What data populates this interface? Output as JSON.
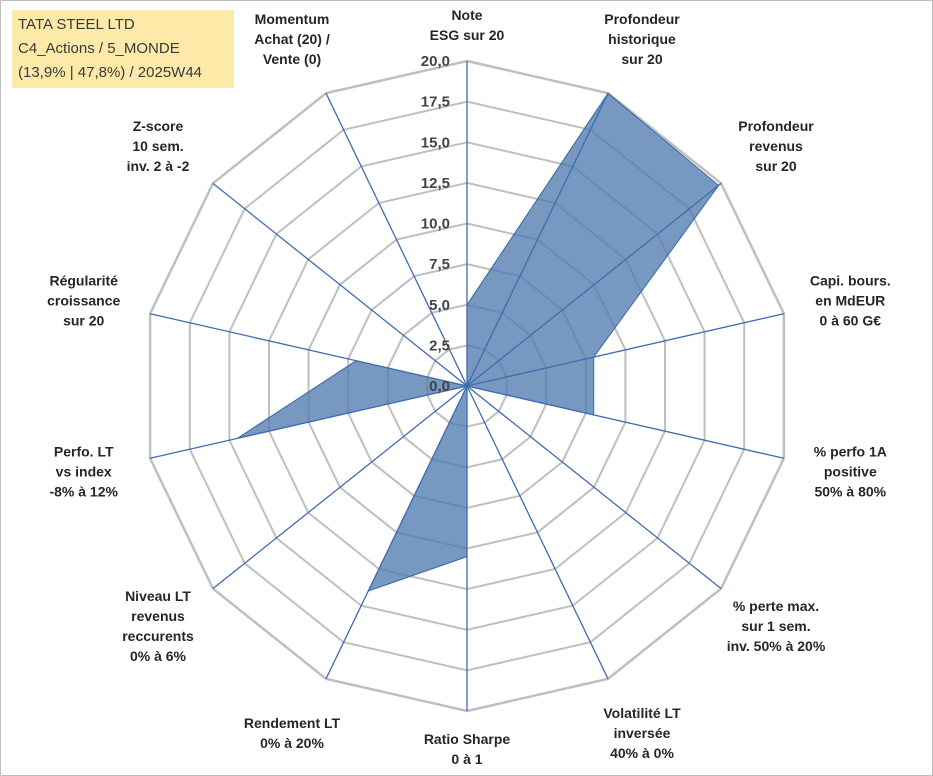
{
  "info_box": {
    "line1": "TATA STEEL LTD",
    "line2": "C4_Actions / 5_MONDE",
    "line3": "(13,9% | 47,8%) / 2025W44"
  },
  "colors": {
    "fill": "#4f7bb0",
    "stroke": "#3b67a2",
    "grid": "#bfbfbf",
    "spoke": "#3f6cb0"
  },
  "chart_data": {
    "type": "radar",
    "rmin": 0,
    "rmax": 20,
    "tick_step": 2.5,
    "tick_labels": [
      "0,0",
      "2,5",
      "5,0",
      "7,5",
      "10,0",
      "12,5",
      "15,0",
      "17,5",
      "20,0"
    ],
    "axes": [
      [
        "Note",
        "ESG sur 20"
      ],
      [
        "Profondeur",
        "historique",
        "sur 20"
      ],
      [
        "Profondeur",
        "revenus",
        "sur 20"
      ],
      [
        "Capi. bours.",
        "en MdEUR",
        "0 à 60 G€"
      ],
      [
        "% perfo 1A",
        "positive",
        "50% à 80%"
      ],
      [
        "% perte max.",
        "sur 1 sem.",
        "inv. 50% à 20%"
      ],
      [
        "Volatilité LT",
        "inversée",
        "40% à 0%"
      ],
      [
        "Ratio Sharpe",
        "0 à 1"
      ],
      [
        "Rendement LT",
        "0% à 20%"
      ],
      [
        "Niveau LT",
        "revenus",
        "reccurents",
        "0% à 6%"
      ],
      [
        "Perfo. LT",
        "vs index",
        "-8% à 12%"
      ],
      [
        "Régularité",
        "croissance",
        "sur 20"
      ],
      [
        "Z-score",
        "10 sem.",
        "inv. 2 à -2"
      ],
      [
        "Momentum",
        "Achat (20) /",
        "Vente (0)"
      ]
    ],
    "series": [
      {
        "values": [
          5.0,
          20.0,
          19.8,
          8.0,
          8.0,
          0.0,
          0.0,
          10.5,
          14.0,
          0.0,
          14.5,
          7.0,
          0.0,
          0.0
        ]
      }
    ],
    "grid": true,
    "legend": "none"
  }
}
